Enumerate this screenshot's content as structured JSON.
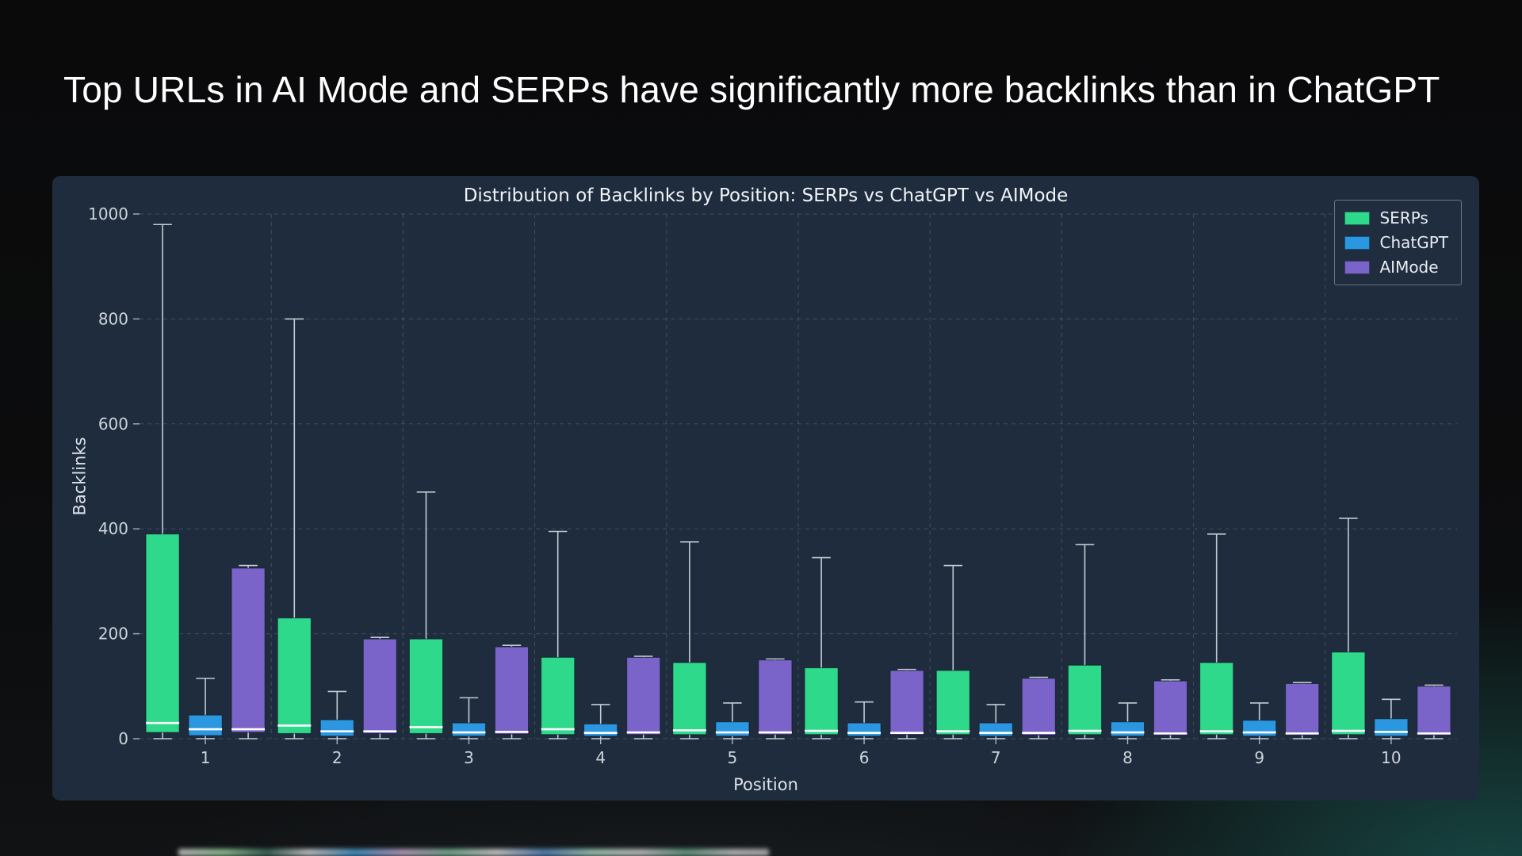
{
  "page": {
    "heading": "Top URLs in AI Mode and SERPs have significantly more backlinks than in ChatGPT"
  },
  "chart_data": {
    "type": "boxplot",
    "title": "Distribution of Backlinks by Position: SERPs vs ChatGPT vs AIMode",
    "xlabel": "Position",
    "ylabel": "Backlinks",
    "ylim": [
      0,
      1000
    ],
    "yticks": [
      0,
      200,
      400,
      600,
      800,
      1000
    ],
    "categories": [
      "1",
      "2",
      "3",
      "4",
      "5",
      "6",
      "7",
      "8",
      "9",
      "10"
    ],
    "grid": "dashed",
    "legend_position": "top-right",
    "colors": {
      "whisker": "#c3cbd3",
      "median": "#ffffff"
    },
    "series": [
      {
        "name": "SERPs",
        "color": "#2fd98c",
        "boxes": [
          {
            "low": 0,
            "q1": 12,
            "median": 30,
            "q3": 390,
            "high": 980
          },
          {
            "low": 0,
            "q1": 10,
            "median": 25,
            "q3": 230,
            "high": 800
          },
          {
            "low": 0,
            "q1": 10,
            "median": 22,
            "q3": 190,
            "high": 470
          },
          {
            "low": 0,
            "q1": 8,
            "median": 18,
            "q3": 155,
            "high": 395
          },
          {
            "low": 0,
            "q1": 8,
            "median": 16,
            "q3": 145,
            "high": 375
          },
          {
            "low": 0,
            "q1": 8,
            "median": 15,
            "q3": 135,
            "high": 345
          },
          {
            "low": 0,
            "q1": 8,
            "median": 14,
            "q3": 130,
            "high": 330
          },
          {
            "low": 0,
            "q1": 8,
            "median": 15,
            "q3": 140,
            "high": 370
          },
          {
            "low": 0,
            "q1": 8,
            "median": 14,
            "q3": 145,
            "high": 390
          },
          {
            "low": 0,
            "q1": 8,
            "median": 15,
            "q3": 165,
            "high": 420
          }
        ]
      },
      {
        "name": "ChatGPT",
        "color": "#2b97e0",
        "boxes": [
          {
            "low": 0,
            "q1": 6,
            "median": 18,
            "q3": 45,
            "high": 115
          },
          {
            "low": 0,
            "q1": 5,
            "median": 14,
            "q3": 36,
            "high": 90
          },
          {
            "low": 0,
            "q1": 5,
            "median": 12,
            "q3": 30,
            "high": 78
          },
          {
            "low": 0,
            "q1": 5,
            "median": 11,
            "q3": 28,
            "high": 65
          },
          {
            "low": 0,
            "q1": 5,
            "median": 12,
            "q3": 32,
            "high": 68
          },
          {
            "low": 0,
            "q1": 5,
            "median": 11,
            "q3": 30,
            "high": 70
          },
          {
            "low": 0,
            "q1": 5,
            "median": 11,
            "q3": 30,
            "high": 65
          },
          {
            "low": 0,
            "q1": 5,
            "median": 12,
            "q3": 32,
            "high": 68
          },
          {
            "low": 0,
            "q1": 5,
            "median": 12,
            "q3": 35,
            "high": 68
          },
          {
            "low": 0,
            "q1": 5,
            "median": 13,
            "q3": 38,
            "high": 75
          }
        ]
      },
      {
        "name": "AIMode",
        "color": "#7b64c9",
        "boxes": [
          {
            "low": 0,
            "q1": 12,
            "median": 18,
            "q3": 325,
            "high": 330
          },
          {
            "low": 0,
            "q1": 10,
            "median": 14,
            "q3": 190,
            "high": 193
          },
          {
            "low": 0,
            "q1": 9,
            "median": 13,
            "q3": 175,
            "high": 178
          },
          {
            "low": 0,
            "q1": 8,
            "median": 12,
            "q3": 155,
            "high": 157
          },
          {
            "low": 0,
            "q1": 8,
            "median": 12,
            "q3": 150,
            "high": 152
          },
          {
            "low": 0,
            "q1": 8,
            "median": 11,
            "q3": 130,
            "high": 132
          },
          {
            "low": 0,
            "q1": 7,
            "median": 11,
            "q3": 115,
            "high": 117
          },
          {
            "low": 0,
            "q1": 7,
            "median": 10,
            "q3": 110,
            "high": 112
          },
          {
            "low": 0,
            "q1": 7,
            "median": 10,
            "q3": 105,
            "high": 107
          },
          {
            "low": 0,
            "q1": 7,
            "median": 10,
            "q3": 100,
            "high": 102
          }
        ]
      }
    ]
  }
}
